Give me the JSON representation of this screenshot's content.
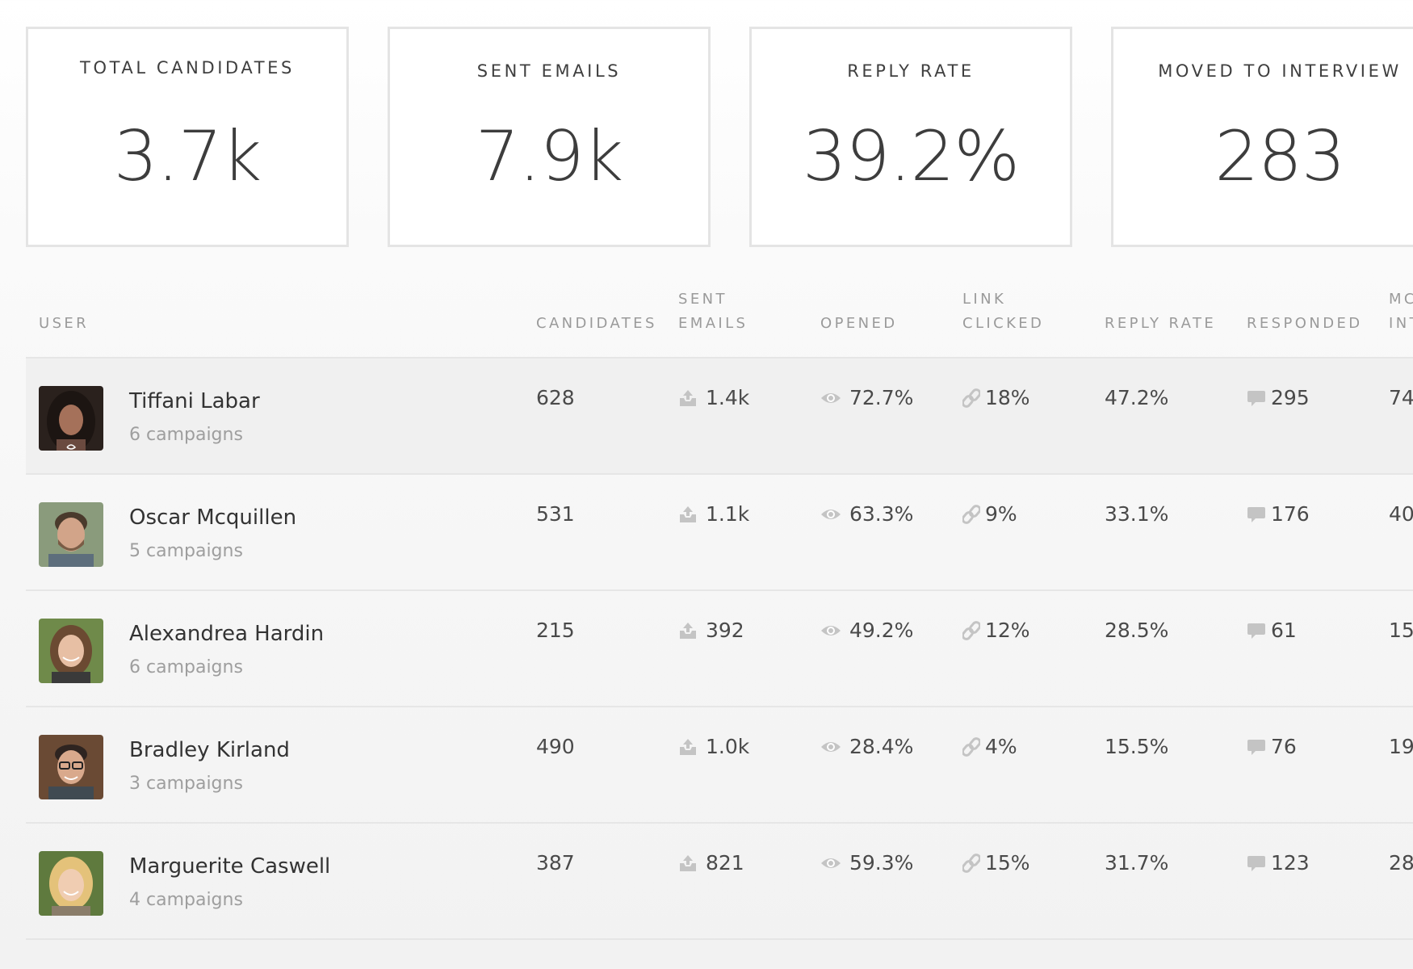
{
  "stats": [
    {
      "label": "TOTAL CANDIDATES",
      "value": "3.7k"
    },
    {
      "label": "SENT EMAILS",
      "value": "7.9k"
    },
    {
      "label": "REPLY RATE",
      "value": "39.2%"
    },
    {
      "label": "MOVED TO INTERVIEW",
      "value": "283"
    }
  ],
  "table": {
    "headers": {
      "user": "USER",
      "candidates": "CANDIDATES",
      "sent_1": "SENT",
      "sent_2": "EMAILS",
      "opened": "OPENED",
      "link_1": "LINK",
      "link_2": "CLICKED",
      "reply_rate": "REPLY RATE",
      "responded": "RESPONDED",
      "moved_1": "MC",
      "moved_2": "INT"
    },
    "rows": [
      {
        "name": "Tiffani Labar",
        "campaigns": "6 campaigns",
        "candidates": "628",
        "sent": "1.4k",
        "opened": "72.7%",
        "clicked": "18%",
        "reply_rate": "47.2%",
        "responded": "295",
        "moved": "74"
      },
      {
        "name": "Oscar Mcquillen",
        "campaigns": "5 campaigns",
        "candidates": "531",
        "sent": "1.1k",
        "opened": "63.3%",
        "clicked": "9%",
        "reply_rate": "33.1%",
        "responded": "176",
        "moved": "40"
      },
      {
        "name": "Alexandrea Hardin",
        "campaigns": "6 campaigns",
        "candidates": "215",
        "sent": "392",
        "opened": "49.2%",
        "clicked": "12%",
        "reply_rate": "28.5%",
        "responded": "61",
        "moved": "15"
      },
      {
        "name": "Bradley Kirland",
        "campaigns": "3 campaigns",
        "candidates": "490",
        "sent": "1.0k",
        "opened": "28.4%",
        "clicked": "4%",
        "reply_rate": "15.5%",
        "responded": "76",
        "moved": "19"
      },
      {
        "name": "Marguerite Caswell",
        "campaigns": "4 campaigns",
        "candidates": "387",
        "sent": "821",
        "opened": "59.3%",
        "clicked": "15%",
        "reply_rate": "31.7%",
        "responded": "123",
        "moved": "28"
      }
    ]
  },
  "icons": {
    "sent": "outbox-icon",
    "opened": "eye-icon",
    "clicked": "link-icon",
    "responded": "speech-bubble-icon"
  },
  "colors": {
    "icon": "#c4c4c4",
    "header_text": "#9a9a9a",
    "card_border": "#e4e4e4"
  }
}
